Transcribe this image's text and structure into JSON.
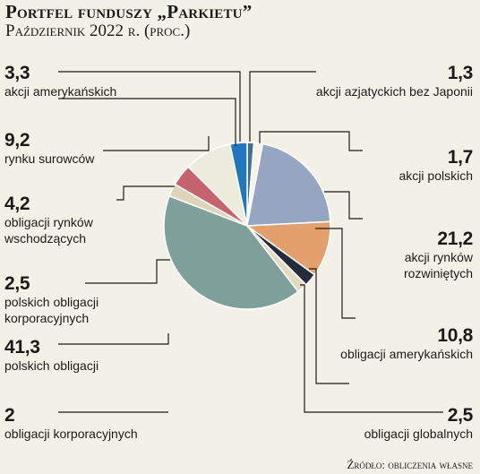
{
  "title": "Portfel funduszy „Parkietu”",
  "subtitle": "Październik 2022 r. (proc.)",
  "source": "Źródło: obliczenia własne",
  "chart_data": {
    "type": "pie",
    "title": "Portfel funduszy „Parkietu”",
    "subtitle": "Październik 2022 r. (proc.)",
    "slices": [
      {
        "label": "akcji azjatyckich bez Japonii",
        "value": 1.3,
        "value_text": "1,3",
        "color": "#43708f"
      },
      {
        "label": "akcji polskich",
        "value": 1.7,
        "value_text": "1,7",
        "color": "#f6f4ea"
      },
      {
        "label": "akcji rynków rozwiniętych",
        "value": 21.2,
        "value_text": "21,2",
        "color": "#96a6c2"
      },
      {
        "label": "obligacji amerykańskich",
        "value": 10.8,
        "value_text": "10,8",
        "color": "#e3a06c"
      },
      {
        "label": "obligacji globalnych",
        "value": 2.5,
        "value_text": "2,5",
        "color": "#262b3b"
      },
      {
        "label": "obligacji korporacyjnych",
        "value": 2,
        "value_text": "2",
        "color": "#e3d8c0"
      },
      {
        "label": "polskich obligacji",
        "value": 41.3,
        "value_text": "41,3",
        "color": "#7f9f9a"
      },
      {
        "label": "polskich obligacji korporacyjnych",
        "value": 2.5,
        "value_text": "2,5",
        "color": "#ddd4ba"
      },
      {
        "label": "obligacji rynków wschodzących",
        "value": 4.2,
        "value_text": "4,2",
        "color": "#c5646f"
      },
      {
        "label": "rynku surowców",
        "value": 9.2,
        "value_text": "9,2",
        "color": "#ecebdc"
      },
      {
        "label": "akcji amerykańskich",
        "value": 3.3,
        "value_text": "3,3",
        "color": "#1f78be"
      }
    ]
  }
}
